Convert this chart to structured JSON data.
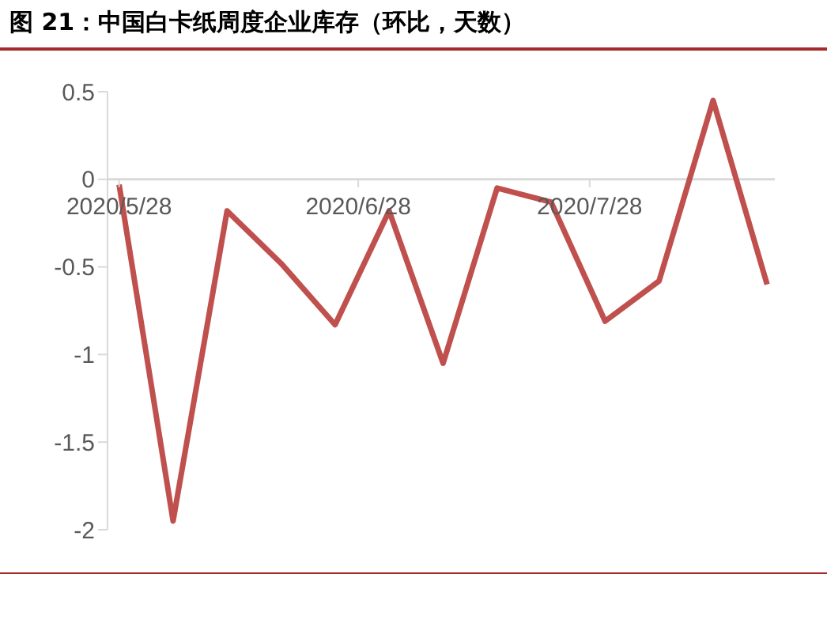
{
  "chart_data": {
    "type": "line",
    "title": "图 21：中国白卡纸周度企业库存（环比，天数）",
    "x": [
      "2020-05-28",
      "2020-06-04",
      "2020-06-11",
      "2020-06-18",
      "2020-06-25",
      "2020-07-02",
      "2020-07-09",
      "2020-07-16",
      "2020-07-23",
      "2020-07-30",
      "2020-08-06",
      "2020-08-13",
      "2020-08-20"
    ],
    "series": [
      {
        "color": "#c0504d",
        "values": [
          -0.03,
          -1.95,
          -0.18,
          -0.48,
          -0.83,
          -0.18,
          -1.05,
          -0.05,
          -0.13,
          -0.81,
          -0.58,
          0.45,
          -0.6
        ]
      }
    ],
    "xlim": [
      "2020-05-26T12:00",
      "2020-08-21"
    ],
    "xticks": [
      {
        "value": "2020-05-28",
        "label": "2020/5/28"
      },
      {
        "value": "2020-06-28",
        "label": "2020/6/28"
      },
      {
        "value": "2020-07-28",
        "label": "2020/7/28"
      }
    ],
    "ylim": [
      -2,
      0.5
    ],
    "yticks": [
      -2,
      -1.5,
      -1,
      -0.5,
      0,
      0.5
    ],
    "marker": "none",
    "line_style": "solid"
  }
}
